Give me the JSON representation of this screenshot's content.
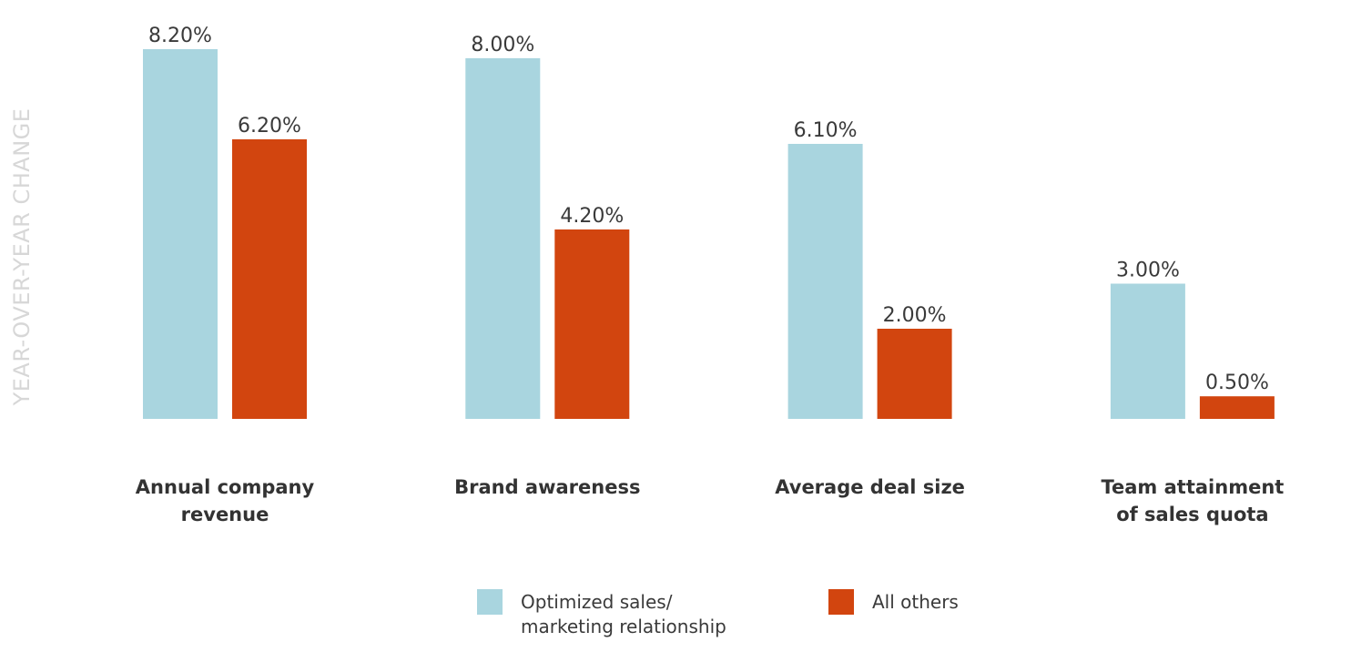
{
  "chart_data": {
    "type": "bar",
    "ylabel": "YEAR-OVER-YEAR CHANGE",
    "xlabel": "",
    "categories": [
      [
        "Annual company",
        "revenue"
      ],
      [
        "Brand awareness"
      ],
      [
        "Average deal size"
      ],
      [
        "Team attainment",
        "of sales quota"
      ]
    ],
    "series": [
      {
        "name": "Optimized sales/ marketing relationship",
        "legend_lines": [
          "Optimized sales/",
          "marketing relationship"
        ],
        "color": "#a9d5df",
        "values": [
          8.2,
          8.0,
          6.1,
          3.0
        ],
        "labels": [
          "8.20%",
          "8.00%",
          "6.10%",
          "3.00%"
        ]
      },
      {
        "name": "All others",
        "legend_lines": [
          "All others"
        ],
        "color": "#d2450f",
        "values": [
          6.2,
          4.2,
          2.0,
          0.5
        ],
        "labels": [
          "6.20%",
          "4.20%",
          "2.00%",
          "0.50%"
        ]
      }
    ],
    "ylim": [
      0,
      8.2
    ],
    "grid": false,
    "legend_position": "bottom-center"
  }
}
